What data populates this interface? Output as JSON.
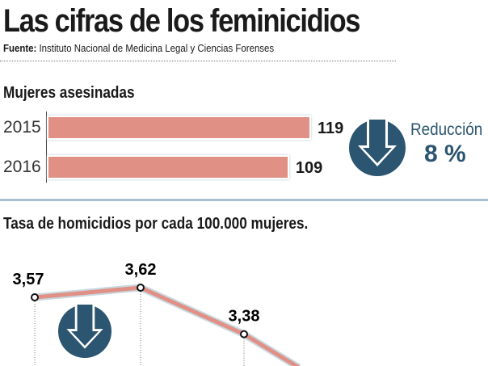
{
  "title": "Las cifras de los feminicidios",
  "source": {
    "label": "Fuente:",
    "text": "Instituto Nacional de Medicina Legal y Ciencias Forenses"
  },
  "colors": {
    "bar": "#e09085",
    "accent": "#2b5570",
    "divider": "#a9bfcc"
  },
  "chart_data": [
    {
      "type": "bar",
      "title": "Mujeres asesinadas",
      "categories": [
        "2015",
        "2016"
      ],
      "values": [
        119,
        109
      ],
      "value_labels": [
        "119",
        "109"
      ],
      "orientation": "horizontal",
      "xlim": [
        0,
        119
      ],
      "annotation": {
        "label": "Reducción",
        "value": "8 %",
        "icon": "arrow-down-circle-icon"
      }
    },
    {
      "type": "line",
      "title": "Tasa de homicidios por cada 100.000 mujeres.",
      "values": [
        3.57,
        3.62,
        3.38
      ],
      "value_labels": [
        "3,57",
        "3,62",
        "3,38"
      ],
      "ylim": [
        2.9,
        3.7
      ],
      "icon": "arrow-down-circle-icon"
    }
  ]
}
